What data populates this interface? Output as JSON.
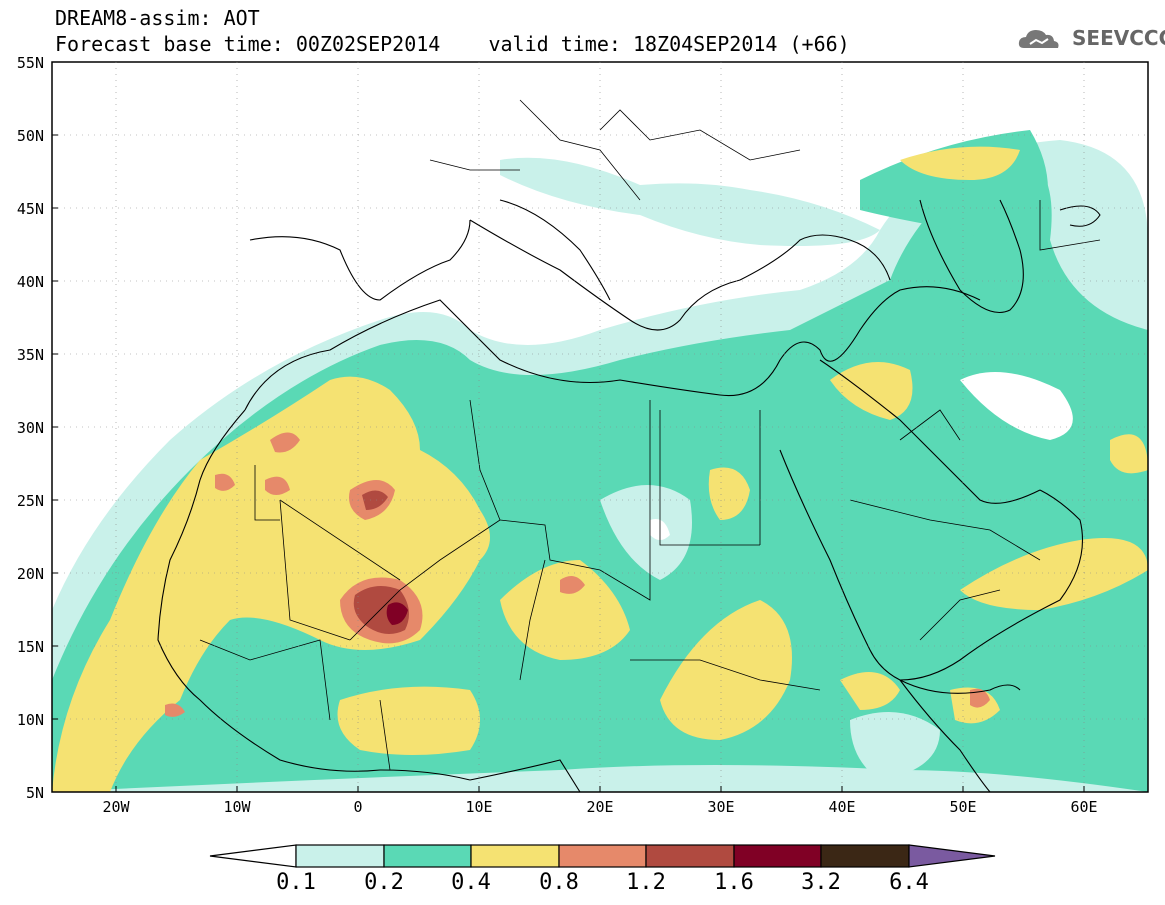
{
  "header": {
    "line1": "DREAM8-assim: AOT",
    "line2": "Forecast base time: 00Z02SEP2014    valid time: 18Z04SEP2014 (+66)"
  },
  "logo": {
    "text": "SEEVCCC",
    "icon": "cloud-icon",
    "color": "#666666"
  },
  "axes": {
    "y_ticks": [
      "55N",
      "50N",
      "45N",
      "40N",
      "35N",
      "30N",
      "25N",
      "20N",
      "15N",
      "10N",
      "5N"
    ],
    "x_ticks": [
      "20W",
      "10W",
      "0",
      "10E",
      "20E",
      "30E",
      "40E",
      "50E",
      "60E"
    ]
  },
  "colorbar": {
    "labels": [
      "0.1",
      "0.2",
      "0.4",
      "0.8",
      "1.2",
      "1.6",
      "3.2",
      "6.4"
    ],
    "colors": [
      "#c9f1ea",
      "#5ad9b5",
      "#f5e272",
      "#e6896a",
      "#b04a40",
      "#800025",
      "#3b2715",
      "#7a5aa0"
    ],
    "under_color": "#ffffff"
  },
  "map_colors": {
    "ocean": "#ffffff",
    "lvl1": "#c9f1ea",
    "lvl2": "#5ad9b5",
    "lvl3": "#f5e272",
    "lvl4": "#e6896a",
    "lvl5": "#b04a40",
    "lvl6": "#800025"
  }
}
